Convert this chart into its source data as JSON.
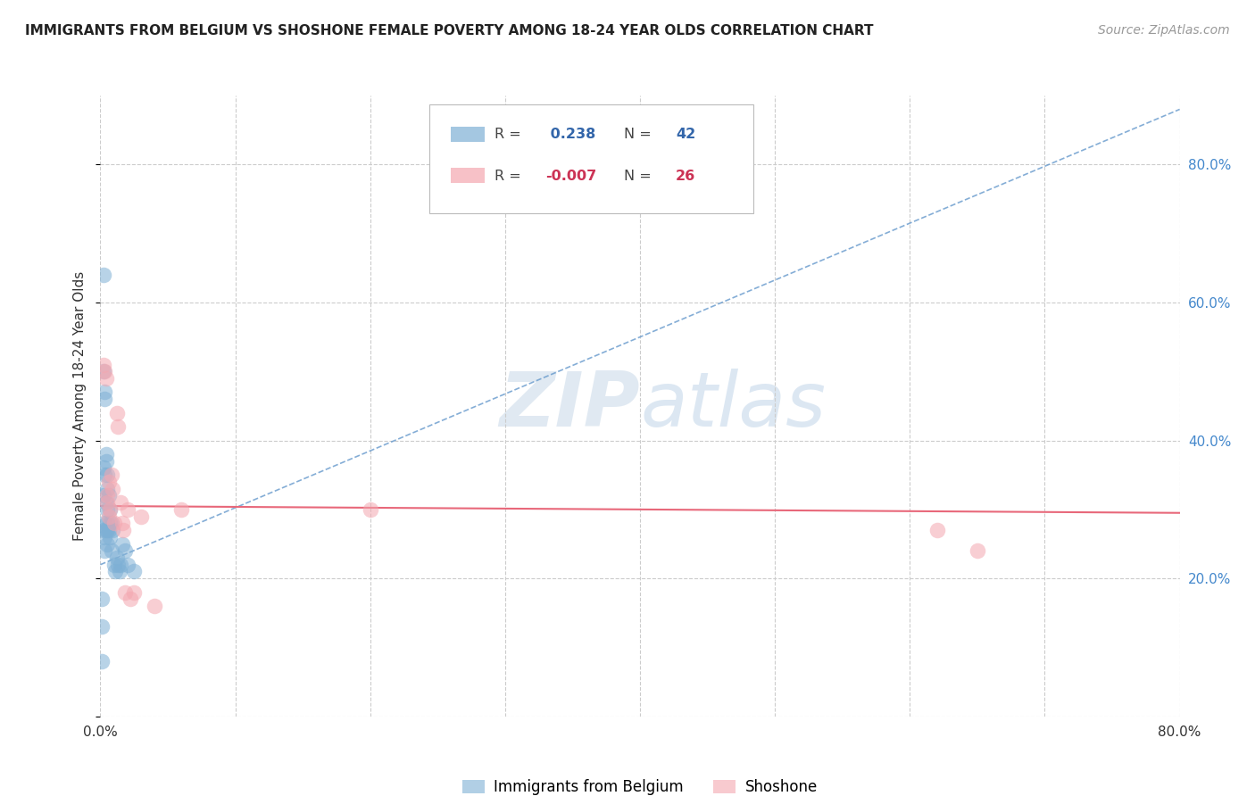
{
  "title": "IMMIGRANTS FROM BELGIUM VS SHOSHONE FEMALE POVERTY AMONG 18-24 YEAR OLDS CORRELATION CHART",
  "source": "Source: ZipAtlas.com",
  "ylabel": "Female Poverty Among 18-24 Year Olds",
  "xlim": [
    0,
    0.8
  ],
  "ylim": [
    0,
    0.9
  ],
  "legend1_R": " 0.238",
  "legend1_N": "42",
  "legend2_R": "-0.007",
  "legend2_N": "26",
  "legend_label1": "Immigrants from Belgium",
  "legend_label2": "Shoshone",
  "blue_color": "#7EB0D5",
  "pink_color": "#F4A7B0",
  "blue_line_color": "#6699CC",
  "pink_line_color": "#E8687A",
  "watermark_zip": "ZIP",
  "watermark_atlas": "atlas",
  "blue_scatter_x": [
    0.001,
    0.001,
    0.001,
    0.002,
    0.002,
    0.002,
    0.002,
    0.002,
    0.003,
    0.003,
    0.003,
    0.003,
    0.003,
    0.003,
    0.004,
    0.004,
    0.004,
    0.004,
    0.005,
    0.005,
    0.005,
    0.005,
    0.005,
    0.005,
    0.006,
    0.006,
    0.007,
    0.007,
    0.007,
    0.008,
    0.008,
    0.009,
    0.01,
    0.011,
    0.012,
    0.013,
    0.014,
    0.015,
    0.016,
    0.018,
    0.02,
    0.025
  ],
  "blue_scatter_y": [
    0.17,
    0.13,
    0.08,
    0.64,
    0.5,
    0.36,
    0.32,
    0.27,
    0.47,
    0.46,
    0.35,
    0.28,
    0.26,
    0.24,
    0.38,
    0.37,
    0.31,
    0.27,
    0.35,
    0.33,
    0.3,
    0.28,
    0.27,
    0.25,
    0.32,
    0.27,
    0.3,
    0.28,
    0.26,
    0.28,
    0.24,
    0.27,
    0.22,
    0.21,
    0.23,
    0.22,
    0.21,
    0.22,
    0.25,
    0.24,
    0.22,
    0.21
  ],
  "pink_scatter_x": [
    0.002,
    0.003,
    0.004,
    0.005,
    0.005,
    0.006,
    0.006,
    0.007,
    0.008,
    0.009,
    0.01,
    0.012,
    0.013,
    0.015,
    0.016,
    0.017,
    0.018,
    0.02,
    0.022,
    0.025,
    0.03,
    0.04,
    0.06,
    0.2,
    0.62,
    0.65
  ],
  "pink_scatter_y": [
    0.51,
    0.5,
    0.49,
    0.32,
    0.31,
    0.34,
    0.29,
    0.3,
    0.35,
    0.33,
    0.28,
    0.44,
    0.42,
    0.31,
    0.28,
    0.27,
    0.18,
    0.3,
    0.17,
    0.18,
    0.29,
    0.16,
    0.3,
    0.3,
    0.27,
    0.24
  ],
  "blue_trend_x": [
    0.0,
    0.8
  ],
  "blue_trend_y": [
    0.22,
    0.88
  ],
  "pink_trend_x": [
    0.0,
    0.8
  ],
  "pink_trend_y": [
    0.305,
    0.295
  ]
}
